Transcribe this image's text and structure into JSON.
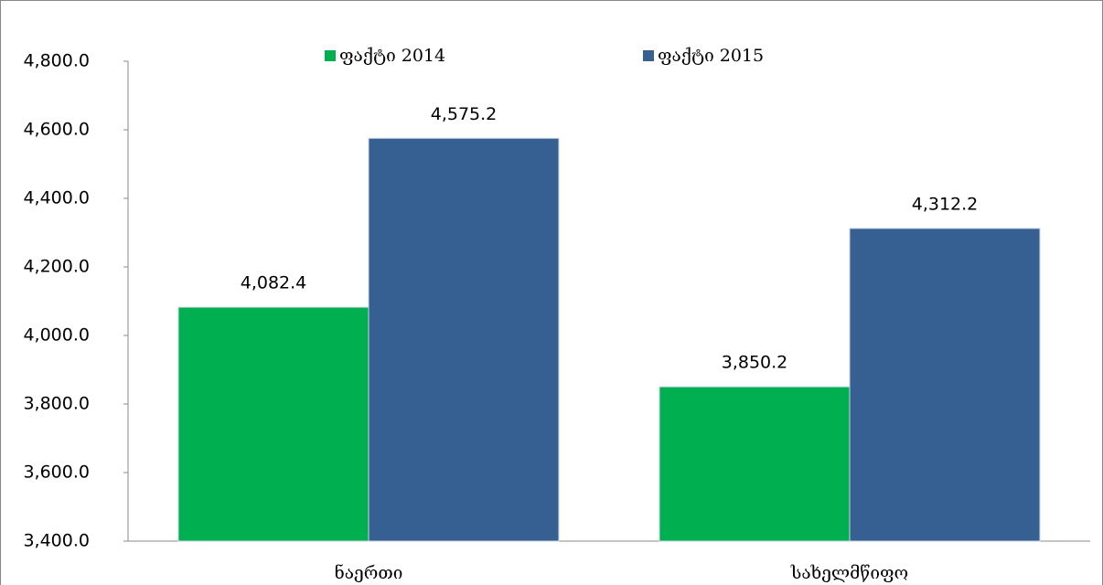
{
  "chart_data": {
    "type": "bar",
    "categories": [
      "ნაერთი",
      "სახელმწიფო"
    ],
    "series": [
      {
        "name": "ფაქტი 2014",
        "color": "#00b050",
        "values": [
          4082.4,
          3850.2
        ],
        "value_labels": [
          "4,082.4",
          "3,850.2"
        ]
      },
      {
        "name": "ფაქტი 2015",
        "color": "#376092",
        "values": [
          4575.2,
          4312.2
        ],
        "value_labels": [
          "4,575.2",
          "4,312.2"
        ]
      }
    ],
    "ylim": [
      3400,
      4800
    ],
    "yticks": [
      {
        "value": 3400,
        "label": "3,400.0"
      },
      {
        "value": 3600,
        "label": "3,600.0"
      },
      {
        "value": 3800,
        "label": "3,800.0"
      },
      {
        "value": 4000,
        "label": "4,000.0"
      },
      {
        "value": 4200,
        "label": "4,200.0"
      },
      {
        "value": 4400,
        "label": "4,400.0"
      },
      {
        "value": 4600,
        "label": "4,600.0"
      },
      {
        "value": 4800,
        "label": "4,800.0"
      }
    ],
    "grid": false,
    "legend": "top"
  }
}
